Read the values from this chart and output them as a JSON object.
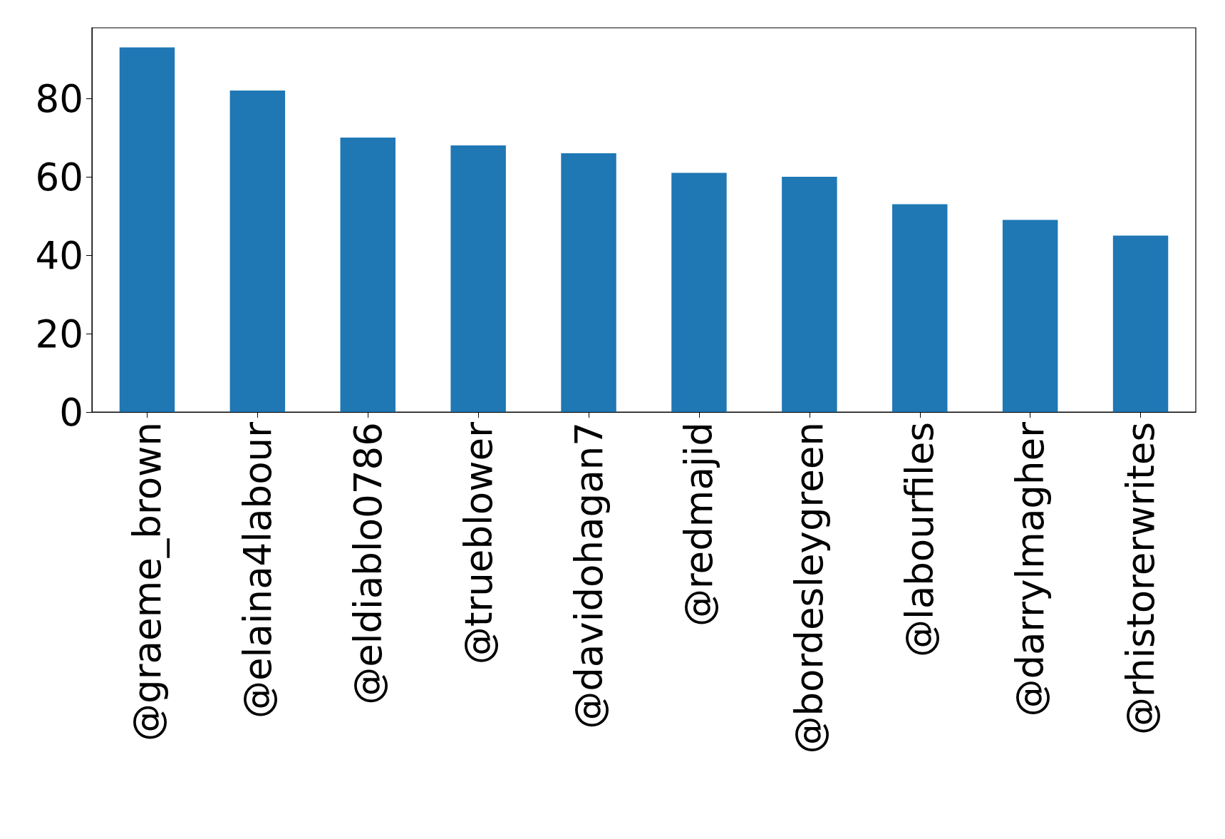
{
  "chart_data": {
    "type": "bar",
    "categories": [
      "@graeme_brown",
      "@elaina4labour",
      "@eldiablo0786",
      "@trueblower",
      "@davidohagan7",
      "@redmajid",
      "@bordesleygreen",
      "@labourfiles",
      "@darrylmagher",
      "@rhistorerwrites"
    ],
    "values": [
      93,
      82,
      70,
      68,
      66,
      61,
      60,
      53,
      49,
      45
    ],
    "color": "#1f77b4",
    "ylim": [
      0,
      98
    ],
    "yticks": [
      0,
      20,
      40,
      60,
      80
    ],
    "grid": false
  }
}
